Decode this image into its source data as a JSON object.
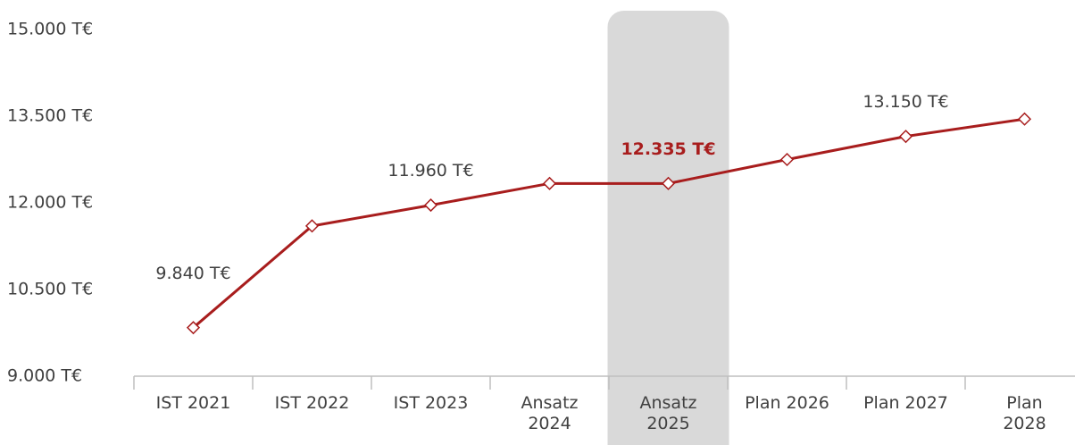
{
  "chart_data": {
    "type": "line",
    "categories": [
      "IST 2021",
      "IST 2022",
      "IST 2023",
      "Ansatz 2024",
      "Ansatz 2025",
      "Plan 2026",
      "Plan 2027",
      "Plan 2028"
    ],
    "series": [
      {
        "color": "#a81d1d",
        "values": [
          9840,
          11600,
          11960,
          12335,
          12335,
          12750,
          13150,
          13450
        ],
        "value_labels": [
          "9.840 T€",
          null,
          "11.960 T€",
          null,
          "12.335 T€",
          null,
          "13.150 T€",
          null
        ]
      }
    ],
    "highlight_index": 4,
    "ylim": [
      9000,
      15000
    ],
    "yticks": [
      {
        "value": 9000,
        "label": "9.000 T€"
      },
      {
        "value": 10500,
        "label": "10.500 T€"
      },
      {
        "value": 12000,
        "label": "12.000 T€"
      },
      {
        "value": 13500,
        "label": "13.500 T€"
      },
      {
        "value": 15000,
        "label": "15.000 T€"
      }
    ]
  }
}
